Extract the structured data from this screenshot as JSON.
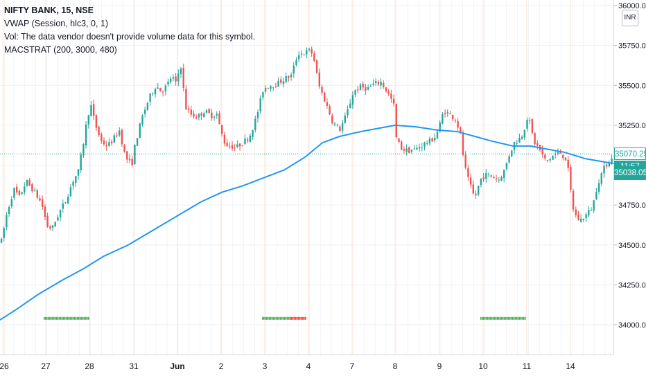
{
  "legend": {
    "title": "NIFTY BANK, 15, NSE",
    "vwap": "VWAP (Session, hlc3, 0, 1)",
    "vol": "Vol: The data vendor doesn't provide volume data for this symbol.",
    "macstrat": "MACSTRAT (200, 3000, 480)"
  },
  "currency_button": "INR",
  "price_badges": {
    "vwap_value": "35070.25",
    "countdown": "11:57",
    "last_price": "35038.05"
  },
  "colors": {
    "up": "#26a69a",
    "down": "#ef5350",
    "ma_line": "#2196f3",
    "signal_green": "#4caf50",
    "signal_red": "#f44336",
    "price_badge": "#26a69a"
  },
  "chart_data": {
    "type": "candlestick",
    "y_ticks": [
      "34000.00",
      "34250.00",
      "34500.00",
      "34750.00",
      "35000.00",
      "35250.00",
      "35500.00",
      "35750.00",
      "36000.00"
    ],
    "ylim": [
      33930,
      36010
    ],
    "x_ticks": [
      "26",
      "27",
      "28",
      "31",
      "Jun",
      "2",
      "3",
      "4",
      "7",
      "8",
      "9",
      "10",
      "11",
      "14"
    ],
    "grid": true,
    "price_path": [
      [
        0,
        34480
      ],
      [
        10,
        34700
      ],
      [
        20,
        34850
      ],
      [
        28,
        34800
      ],
      [
        38,
        34900
      ],
      [
        50,
        34830
      ],
      [
        60,
        34760
      ],
      [
        68,
        34620
      ],
      [
        75,
        34600
      ],
      [
        85,
        34700
      ],
      [
        95,
        34780
      ],
      [
        105,
        34900
      ],
      [
        113,
        34960
      ],
      [
        120,
        35130
      ],
      [
        126,
        35300
      ],
      [
        131,
        35380
      ],
      [
        137,
        35260
      ],
      [
        146,
        35150
      ],
      [
        155,
        35120
      ],
      [
        163,
        35160
      ],
      [
        172,
        35220
      ],
      [
        181,
        35050
      ],
      [
        190,
        35000
      ],
      [
        195,
        35130
      ],
      [
        205,
        35300
      ],
      [
        215,
        35420
      ],
      [
        225,
        35500
      ],
      [
        233,
        35460
      ],
      [
        241,
        35500
      ],
      [
        248,
        35560
      ],
      [
        255,
        35500
      ],
      [
        260,
        35660
      ],
      [
        264,
        35500
      ],
      [
        268,
        35360
      ],
      [
        275,
        35320
      ],
      [
        285,
        35300
      ],
      [
        295,
        35340
      ],
      [
        305,
        35310
      ],
      [
        313,
        35320
      ],
      [
        318,
        35220
      ],
      [
        325,
        35130
      ],
      [
        333,
        35120
      ],
      [
        340,
        35110
      ],
      [
        350,
        35140
      ],
      [
        360,
        35180
      ],
      [
        370,
        35300
      ],
      [
        380,
        35480
      ],
      [
        390,
        35500
      ],
      [
        400,
        35510
      ],
      [
        410,
        35540
      ],
      [
        420,
        35560
      ],
      [
        430,
        35700
      ],
      [
        438,
        35700
      ],
      [
        447,
        35720
      ],
      [
        452,
        35690
      ],
      [
        460,
        35500
      ],
      [
        470,
        35390
      ],
      [
        480,
        35270
      ],
      [
        490,
        35220
      ],
      [
        500,
        35320
      ],
      [
        510,
        35460
      ],
      [
        520,
        35490
      ],
      [
        530,
        35480
      ],
      [
        540,
        35510
      ],
      [
        550,
        35520
      ],
      [
        560,
        35450
      ],
      [
        568,
        35380
      ],
      [
        572,
        35160
      ],
      [
        580,
        35100
      ],
      [
        590,
        35090
      ],
      [
        600,
        35100
      ],
      [
        610,
        35130
      ],
      [
        620,
        35150
      ],
      [
        628,
        35180
      ],
      [
        633,
        35230
      ],
      [
        640,
        35340
      ],
      [
        648,
        35320
      ],
      [
        657,
        35290
      ],
      [
        664,
        35200
      ],
      [
        670,
        35000
      ],
      [
        676,
        34900
      ],
      [
        685,
        34790
      ],
      [
        693,
        34910
      ],
      [
        700,
        34940
      ],
      [
        710,
        34930
      ],
      [
        720,
        34910
      ],
      [
        728,
        34970
      ],
      [
        735,
        35070
      ],
      [
        742,
        35140
      ],
      [
        748,
        35160
      ],
      [
        755,
        35200
      ],
      [
        760,
        35300
      ],
      [
        765,
        35260
      ],
      [
        770,
        35150
      ],
      [
        778,
        35100
      ],
      [
        788,
        35020
      ],
      [
        798,
        35060
      ],
      [
        808,
        35080
      ],
      [
        818,
        35030
      ],
      [
        822,
        34880
      ],
      [
        828,
        34700
      ],
      [
        836,
        34650
      ],
      [
        846,
        34690
      ],
      [
        855,
        34740
      ],
      [
        862,
        34880
      ],
      [
        870,
        34970
      ],
      [
        877,
        35020
      ],
      [
        883,
        35040
      ]
    ],
    "ma_line": [
      [
        0,
        34030
      ],
      [
        25,
        34100
      ],
      [
        55,
        34190
      ],
      [
        90,
        34280
      ],
      [
        120,
        34350
      ],
      [
        150,
        34430
      ],
      [
        185,
        34500
      ],
      [
        220,
        34590
      ],
      [
        255,
        34680
      ],
      [
        290,
        34770
      ],
      [
        320,
        34830
      ],
      [
        350,
        34870
      ],
      [
        380,
        34920
      ],
      [
        410,
        34970
      ],
      [
        440,
        35050
      ],
      [
        465,
        35140
      ],
      [
        490,
        35180
      ],
      [
        520,
        35210
      ],
      [
        545,
        35230
      ],
      [
        570,
        35250
      ],
      [
        600,
        35240
      ],
      [
        630,
        35220
      ],
      [
        660,
        35210
      ],
      [
        685,
        35180
      ],
      [
        710,
        35150
      ],
      [
        740,
        35120
      ],
      [
        765,
        35120
      ],
      [
        790,
        35100
      ],
      [
        815,
        35080
      ],
      [
        845,
        35040
      ],
      [
        885,
        35010
      ]
    ],
    "signal_bars": [
      {
        "from": 63,
        "to": 127,
        "color": "green"
      },
      {
        "from": 378,
        "to": 418,
        "color": "green"
      },
      {
        "from": 418,
        "to": 440,
        "color": "red"
      },
      {
        "from": 693,
        "to": 757,
        "color": "green"
      }
    ],
    "signal_level": 34040,
    "current_price": 35038.05,
    "vwap_level": 35070.25
  }
}
